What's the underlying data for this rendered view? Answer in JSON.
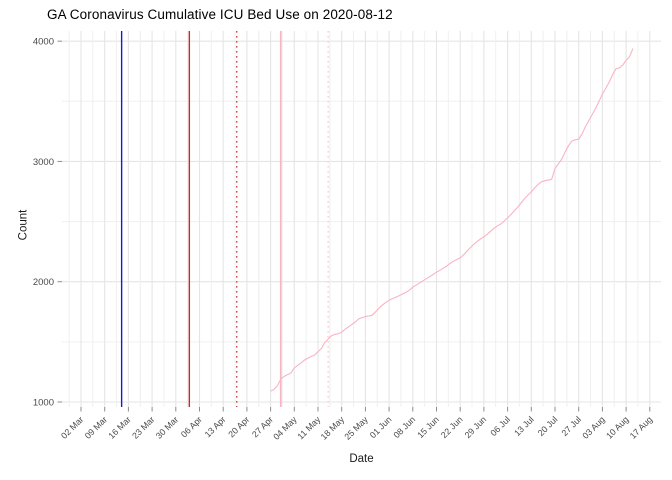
{
  "chart_data": {
    "type": "line",
    "title": "GA Coronavirus Cumulative ICU Bed Use on 2020-08-12",
    "xlabel": "Date",
    "ylabel": "Count",
    "legend": "none",
    "grid": "major+minor",
    "y_ticks": [
      1000,
      2000,
      3000,
      4000
    ],
    "y_tick_labels": [
      "1000",
      "2000",
      "3000",
      "4000"
    ],
    "y_minor_ticks": [
      1500,
      2500,
      3500
    ],
    "ylim": [
      930,
      4070
    ],
    "xlim": [
      "2020-02-25",
      "2020-08-20"
    ],
    "x_tick_labels": [
      "02 Mar",
      "09 Mar",
      "16 Mar",
      "23 Mar",
      "30 Mar",
      "06 Apr",
      "13 Apr",
      "20 Apr",
      "27 Apr",
      "04 May",
      "11 May",
      "18 May",
      "25 May",
      "01 Jun",
      "08 Jun",
      "15 Jun",
      "22 Jun",
      "29 Jun",
      "06 Jul",
      "13 Jul",
      "20 Jul",
      "27 Jul",
      "03 Aug",
      "10 Aug",
      "17 Aug"
    ],
    "x_tick_dates": [
      "2020-03-02",
      "2020-03-09",
      "2020-03-16",
      "2020-03-23",
      "2020-03-30",
      "2020-04-06",
      "2020-04-13",
      "2020-04-20",
      "2020-04-27",
      "2020-05-04",
      "2020-05-11",
      "2020-05-18",
      "2020-05-25",
      "2020-06-01",
      "2020-06-08",
      "2020-06-15",
      "2020-06-22",
      "2020-06-29",
      "2020-07-06",
      "2020-07-13",
      "2020-07-20",
      "2020-07-27",
      "2020-08-03",
      "2020-08-10",
      "2020-08-17"
    ],
    "vlines": [
      {
        "date": "2020-03-14",
        "color": "#1a1acc",
        "dash": "solid",
        "width": 1.4
      },
      {
        "date": "2020-04-03",
        "color": "#d42626",
        "dash": "solid",
        "width": 1.4
      },
      {
        "date": "2020-04-17",
        "color": "#c03c3c",
        "dash": "dotted",
        "width": 1.3
      },
      {
        "date": "2020-04-30",
        "color": "#f7b4c3",
        "dash": "solid",
        "width": 1.7
      },
      {
        "date": "2020-05-14",
        "color": "#f7ccd6",
        "dash": "dotted",
        "width": 1.4
      }
    ],
    "styles": {
      "background": "#ffffff",
      "grid_major": "#e5e5e5",
      "grid_minor": "#f0f0f0",
      "tick_mark": "#8c8c8c",
      "tick_label": "#4a4a4a",
      "series_color": "#f9b3c3"
    },
    "series": [
      {
        "name": "Cumulative ICU Bed Use",
        "color": "#f9b3c3",
        "points": [
          [
            "2020-04-27",
            1090
          ],
          [
            "2020-04-28",
            1105
          ],
          [
            "2020-04-29",
            1135
          ],
          [
            "2020-04-30",
            1190
          ],
          [
            "2020-05-01",
            1212
          ],
          [
            "2020-05-02",
            1228
          ],
          [
            "2020-05-03",
            1240
          ],
          [
            "2020-05-04",
            1283
          ],
          [
            "2020-05-05",
            1305
          ],
          [
            "2020-05-06",
            1325
          ],
          [
            "2020-05-07",
            1348
          ],
          [
            "2020-05-08",
            1365
          ],
          [
            "2020-05-09",
            1378
          ],
          [
            "2020-05-10",
            1390
          ],
          [
            "2020-05-11",
            1418
          ],
          [
            "2020-05-12",
            1445
          ],
          [
            "2020-05-13",
            1495
          ],
          [
            "2020-05-14",
            1524
          ],
          [
            "2020-05-15",
            1550
          ],
          [
            "2020-05-16",
            1562
          ],
          [
            "2020-05-17",
            1568
          ],
          [
            "2020-05-18",
            1580
          ],
          [
            "2020-05-19",
            1605
          ],
          [
            "2020-05-20",
            1625
          ],
          [
            "2020-05-21",
            1645
          ],
          [
            "2020-05-22",
            1665
          ],
          [
            "2020-05-23",
            1690
          ],
          [
            "2020-05-24",
            1702
          ],
          [
            "2020-05-25",
            1710
          ],
          [
            "2020-05-26",
            1715
          ],
          [
            "2020-05-27",
            1722
          ],
          [
            "2020-05-28",
            1750
          ],
          [
            "2020-05-29",
            1780
          ],
          [
            "2020-05-30",
            1805
          ],
          [
            "2020-05-31",
            1828
          ],
          [
            "2020-06-01",
            1846
          ],
          [
            "2020-06-02",
            1860
          ],
          [
            "2020-06-03",
            1872
          ],
          [
            "2020-06-04",
            1885
          ],
          [
            "2020-06-05",
            1898
          ],
          [
            "2020-06-06",
            1912
          ],
          [
            "2020-06-07",
            1930
          ],
          [
            "2020-06-08",
            1954
          ],
          [
            "2020-06-09",
            1972
          ],
          [
            "2020-06-10",
            1990
          ],
          [
            "2020-06-11",
            2008
          ],
          [
            "2020-06-12",
            2025
          ],
          [
            "2020-06-13",
            2042
          ],
          [
            "2020-06-14",
            2060
          ],
          [
            "2020-06-15",
            2079
          ],
          [
            "2020-06-16",
            2095
          ],
          [
            "2020-06-17",
            2112
          ],
          [
            "2020-06-18",
            2130
          ],
          [
            "2020-06-19",
            2152
          ],
          [
            "2020-06-20",
            2170
          ],
          [
            "2020-06-21",
            2185
          ],
          [
            "2020-06-22",
            2198
          ],
          [
            "2020-06-23",
            2225
          ],
          [
            "2020-06-24",
            2255
          ],
          [
            "2020-06-25",
            2284
          ],
          [
            "2020-06-26",
            2310
          ],
          [
            "2020-06-27",
            2335
          ],
          [
            "2020-06-28",
            2355
          ],
          [
            "2020-06-29",
            2373
          ],
          [
            "2020-06-30",
            2395
          ],
          [
            "2020-07-01",
            2420
          ],
          [
            "2020-07-02",
            2445
          ],
          [
            "2020-07-03",
            2465
          ],
          [
            "2020-07-04",
            2480
          ],
          [
            "2020-07-05",
            2505
          ],
          [
            "2020-07-06",
            2531
          ],
          [
            "2020-07-07",
            2560
          ],
          [
            "2020-07-08",
            2590
          ],
          [
            "2020-07-09",
            2620
          ],
          [
            "2020-07-10",
            2655
          ],
          [
            "2020-07-11",
            2690
          ],
          [
            "2020-07-12",
            2720
          ],
          [
            "2020-07-13",
            2747
          ],
          [
            "2020-07-14",
            2780
          ],
          [
            "2020-07-15",
            2810
          ],
          [
            "2020-07-16",
            2830
          ],
          [
            "2020-07-17",
            2840
          ],
          [
            "2020-07-18",
            2845
          ],
          [
            "2020-07-19",
            2850
          ],
          [
            "2020-07-20",
            2940
          ],
          [
            "2020-07-21",
            2980
          ],
          [
            "2020-07-22",
            3020
          ],
          [
            "2020-07-23",
            3080
          ],
          [
            "2020-07-24",
            3130
          ],
          [
            "2020-07-25",
            3170
          ],
          [
            "2020-07-26",
            3180
          ],
          [
            "2020-07-27",
            3185
          ],
          [
            "2020-07-28",
            3230
          ],
          [
            "2020-07-29",
            3290
          ],
          [
            "2020-07-30",
            3340
          ],
          [
            "2020-07-31",
            3390
          ],
          [
            "2020-08-01",
            3440
          ],
          [
            "2020-08-02",
            3500
          ],
          [
            "2020-08-03",
            3560
          ],
          [
            "2020-08-04",
            3610
          ],
          [
            "2020-08-05",
            3660
          ],
          [
            "2020-08-06",
            3720
          ],
          [
            "2020-08-07",
            3770
          ],
          [
            "2020-08-08",
            3778
          ],
          [
            "2020-08-09",
            3800
          ],
          [
            "2020-08-10",
            3840
          ],
          [
            "2020-08-11",
            3870
          ],
          [
            "2020-08-12",
            3939
          ]
        ]
      }
    ]
  }
}
